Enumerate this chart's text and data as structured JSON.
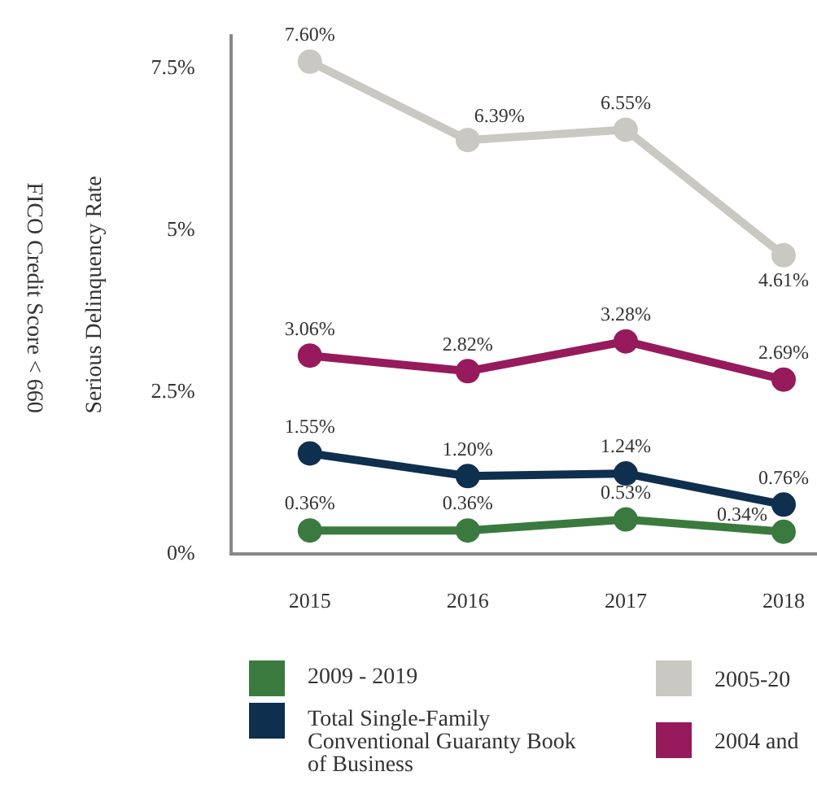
{
  "chart_data": {
    "type": "line",
    "title": "FICO Credit Score < 660",
    "ylabel": "Serious Delinquency Rate",
    "categories": [
      "2015",
      "2016",
      "2017",
      "2018"
    ],
    "ylim": [
      0,
      8
    ],
    "yticks": [
      {
        "value": 0,
        "label": "0%"
      },
      {
        "value": 2.5,
        "label": "2.5%"
      },
      {
        "value": 5,
        "label": "5%"
      },
      {
        "value": 7.5,
        "label": "7.5%"
      }
    ],
    "grid": false,
    "legend": "bottom",
    "marker": "circle",
    "line_style": "solid",
    "series": [
      {
        "name": "2009 - 2019",
        "color": "#3b7a3e",
        "values": [
          0.36,
          0.36,
          0.53,
          0.34
        ],
        "value_labels": [
          "0.36%",
          "0.36%",
          "0.53%",
          "0.34%"
        ]
      },
      {
        "name": "2005-20",
        "color": "#c9c8c3",
        "values": [
          7.6,
          6.39,
          6.55,
          4.61
        ],
        "value_labels": [
          "7.60%",
          "6.39%",
          "6.55%",
          "4.61%"
        ]
      },
      {
        "name": "Total Single-Family Conventional Guaranty Book of Business",
        "color": "#0e2f4d",
        "values": [
          1.55,
          1.2,
          1.24,
          0.76
        ],
        "value_labels": [
          "1.55%",
          "1.20%",
          "1.24%",
          "0.76%"
        ]
      },
      {
        "name": "2004 and",
        "color": "#961a5c",
        "values": [
          3.06,
          2.82,
          3.28,
          2.69
        ],
        "value_labels": [
          "3.06%",
          "2.82%",
          "3.28%",
          "2.69%"
        ]
      }
    ]
  }
}
